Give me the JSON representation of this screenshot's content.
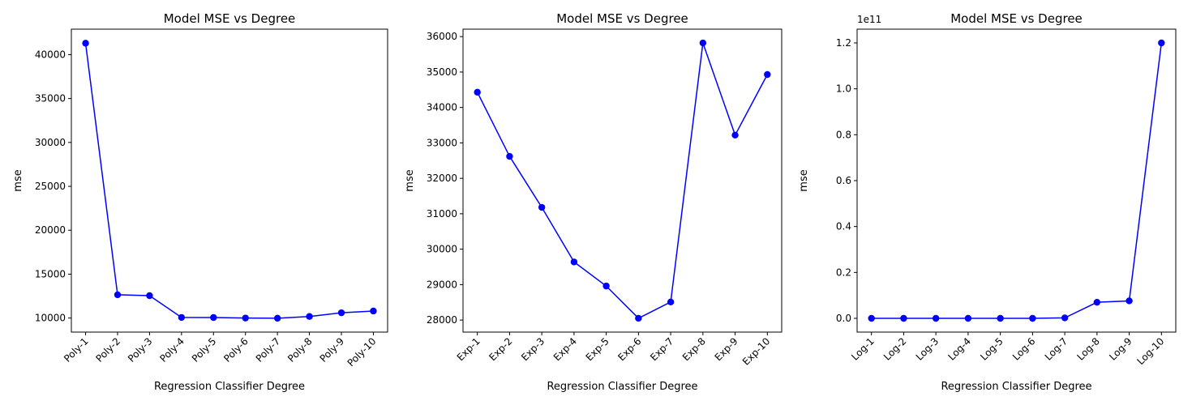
{
  "chart_data": [
    {
      "type": "line",
      "title": "Model MSE vs Degree",
      "xlabel": "Regression Classifier Degree",
      "ylabel": "mse",
      "categories": [
        "Poly-1",
        "Poly-2",
        "Poly-3",
        "Poly-4",
        "Poly-5",
        "Poly-6",
        "Poly-7",
        "Poly-8",
        "Poly-9",
        "Poly-10"
      ],
      "values": [
        41300,
        12650,
        12550,
        10070,
        10060,
        10000,
        9980,
        10180,
        10600,
        10800
      ],
      "ylim": [
        8400,
        42900
      ],
      "yticks": [
        10000,
        15000,
        20000,
        25000,
        30000,
        35000,
        40000
      ],
      "ytick_labels": [
        "10000",
        "15000",
        "20000",
        "25000",
        "30000",
        "35000",
        "40000"
      ],
      "offset_text": "",
      "color": "#0000ff",
      "marker": "circle",
      "grid": false
    },
    {
      "type": "line",
      "title": "Model MSE vs Degree",
      "xlabel": "Regression Classifier Degree",
      "ylabel": "mse",
      "categories": [
        "Exp-1",
        "Exp-2",
        "Exp-3",
        "Exp-4",
        "Exp-5",
        "Exp-6",
        "Exp-7",
        "Exp-8",
        "Exp-9",
        "Exp-10"
      ],
      "values": [
        34430,
        32620,
        31180,
        29640,
        28960,
        28050,
        28510,
        35820,
        33220,
        34930
      ],
      "ylim": [
        27660,
        36210
      ],
      "yticks": [
        28000,
        29000,
        30000,
        31000,
        32000,
        33000,
        34000,
        35000,
        36000
      ],
      "ytick_labels": [
        "28000",
        "29000",
        "30000",
        "31000",
        "32000",
        "33000",
        "34000",
        "35000",
        "36000"
      ],
      "offset_text": "",
      "color": "#0000ff",
      "marker": "circle",
      "grid": false
    },
    {
      "type": "line",
      "title": "Model MSE vs Degree",
      "xlabel": "Regression Classifier Degree",
      "ylabel": "mse",
      "categories": [
        "Log-1",
        "Log-2",
        "Log-3",
        "Log-4",
        "Log-5",
        "Log-6",
        "Log-7",
        "Log-8",
        "Log-9",
        "Log-10"
      ],
      "values": [
        0.0,
        0.0,
        0.0,
        0.0,
        0.0,
        0.0,
        0.002,
        0.07,
        0.076,
        1.2
      ],
      "ylim": [
        -0.06,
        1.26
      ],
      "yticks": [
        0.0,
        0.2,
        0.4,
        0.6,
        0.8,
        1.0,
        1.2
      ],
      "ytick_labels": [
        "0.0",
        "0.2",
        "0.4",
        "0.6",
        "0.8",
        "1.0",
        "1.2"
      ],
      "offset_text": "1e11",
      "color": "#0000ff",
      "marker": "circle",
      "grid": false
    }
  ]
}
